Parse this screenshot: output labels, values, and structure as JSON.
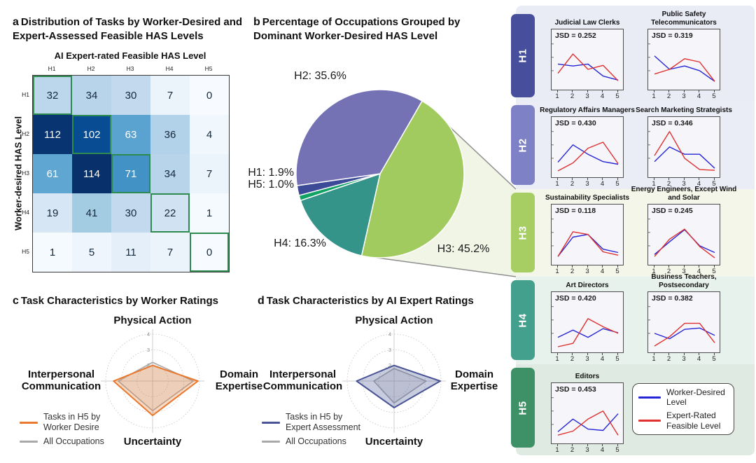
{
  "panels": {
    "a": {
      "letter": "a",
      "title": "Distribution of Tasks by Worker-Desired and Expert-Assessed Feasible HAS Levels"
    },
    "b": {
      "letter": "b",
      "title": "Percentage of Occupations Grouped by Dominant Worker-Desired HAS Level"
    },
    "c": {
      "letter": "c",
      "title": "Task Characteristics by Worker Ratings"
    },
    "d": {
      "letter": "d",
      "title": "Task Characteristics by AI Expert Ratings"
    }
  },
  "chart_data": [
    {
      "id": "confusion_heatmap",
      "type": "heatmap",
      "xlabel": "AI Expert-rated Feasible HAS Level",
      "ylabel": "Worker-desired HAS Level",
      "x_ticks": [
        "H1",
        "H2",
        "H3",
        "H4",
        "H5"
      ],
      "y_ticks": [
        "H1",
        "H2",
        "H3",
        "H4",
        "H5"
      ],
      "values": [
        [
          32,
          34,
          30,
          7,
          0
        ],
        [
          112,
          102,
          63,
          36,
          4
        ],
        [
          61,
          114,
          71,
          34,
          7
        ],
        [
          19,
          41,
          30,
          22,
          1
        ],
        [
          1,
          5,
          11,
          7,
          0
        ]
      ],
      "vmin": 0,
      "vmax": 114,
      "colormap": "Blues",
      "diagonal_highlight_color": "#2e8b4f"
    },
    {
      "id": "occupation_pie",
      "type": "pie",
      "unit": "%",
      "start_angle_clockwise_from_top_deg": 30,
      "slices": [
        {
          "label": "H3",
          "value": 45.2,
          "display": "H3: 45.2%",
          "color": "#a1cb5e"
        },
        {
          "label": "H4",
          "value": 16.3,
          "display": "H4: 16.3%",
          "color": "#359489"
        },
        {
          "label": "H5",
          "value": 1.0,
          "display": "H5: 1.0%",
          "color": "#10a364"
        },
        {
          "label": "H1",
          "value": 1.9,
          "display": "H1: 1.9%",
          "color": "#3c4a97"
        },
        {
          "label": "H2",
          "value": 35.6,
          "display": "H2: 35.6%",
          "color": "#7471b5"
        }
      ],
      "callout": {
        "from_slice": "H3",
        "fill": "#f1f5e6",
        "line_color": "#8f8f8f",
        "connects_to": "H3 occupation row"
      }
    },
    {
      "id": "radar_worker",
      "type": "radar",
      "axes": [
        "Physical Action",
        "Domain Expertise",
        "Uncertainty",
        "Interpersonal Communication"
      ],
      "r_min": 1,
      "r_max": 4,
      "r_ticks": [
        2,
        3,
        4
      ],
      "series": [
        {
          "name": "Tasks in H5 by Worker Desire",
          "color": "#e8792f",
          "fill_alpha": 0.28,
          "values": [
            2.0,
            3.9,
            3.2,
            3.5
          ]
        },
        {
          "name": "All Occupations",
          "color": "#a9a9a9",
          "fill_alpha": 0.18,
          "values": [
            2.2,
            3.6,
            2.9,
            3.2
          ]
        }
      ]
    },
    {
      "id": "radar_expert",
      "type": "radar",
      "axes": [
        "Physical Action",
        "Domain Expertise",
        "Uncertainty",
        "Interpersonal Communication"
      ],
      "r_min": 1,
      "r_max": 4,
      "r_ticks": [
        2,
        3,
        4
      ],
      "series": [
        {
          "name": "Tasks in H5 by Expert Assessment",
          "color": "#4a5596",
          "fill_alpha": 0.3,
          "values": [
            2.0,
            3.95,
            2.7,
            3.4
          ]
        },
        {
          "name": "All Occupations",
          "color": "#a9a9a9",
          "fill_alpha": 0.22,
          "values": [
            1.8,
            3.05,
            2.4,
            2.3
          ]
        }
      ]
    },
    {
      "id": "occupation_profiles",
      "type": "line",
      "x": [
        1,
        2,
        3,
        4,
        5
      ],
      "ylim": [
        0,
        0.65
      ],
      "legend": [
        {
          "name": "Worker-Desired Level",
          "color": "#2525d8"
        },
        {
          "name": "Expert-Rated Feasible Level",
          "color": "#e03030"
        }
      ],
      "groups": [
        {
          "level": "H1",
          "tab_color": "#474f9c",
          "row_bg": "#e9ebf5",
          "charts": [
            {
              "title": "Judicial Law Clerks",
              "jsd_label": "JSD = 0.252",
              "jsd": 0.252,
              "worker_desired": [
                0.3,
                0.27,
                0.3,
                0.12,
                0.06
              ],
              "expert_rated": [
                0.16,
                0.45,
                0.22,
                0.28,
                0.05
              ]
            },
            {
              "title": "Public Safety Telecommunicators",
              "jsd_label": "JSD = 0.319",
              "jsd": 0.319,
              "worker_desired": [
                0.42,
                0.22,
                0.27,
                0.2,
                0.04
              ],
              "expert_rated": [
                0.15,
                0.22,
                0.38,
                0.33,
                0.04
              ]
            }
          ]
        },
        {
          "level": "H2",
          "tab_color": "#7e81c5",
          "row_bg": "#eaecf6",
          "charts": [
            {
              "title": "Regulatory Affairs Managers",
              "jsd_label": "JSD = 0.430",
              "jsd": 0.43,
              "worker_desired": [
                0.14,
                0.4,
                0.26,
                0.15,
                0.11
              ],
              "expert_rated": [
                0.01,
                0.13,
                0.35,
                0.44,
                0.12
              ]
            },
            {
              "title": "Search Marketing Strategists",
              "jsd_label": "JSD = 0.346",
              "jsd": 0.346,
              "worker_desired": [
                0.15,
                0.37,
                0.26,
                0.26,
                0.05
              ],
              "expert_rated": [
                0.24,
                0.6,
                0.2,
                0.03,
                0.02
              ]
            }
          ]
        },
        {
          "level": "H3",
          "tab_color": "#a6ce62",
          "row_bg": "#f3f6e8",
          "charts": [
            {
              "title": "Sustainability Specialists",
              "jsd_label": "JSD = 0.118",
              "jsd": 0.118,
              "worker_desired": [
                0.04,
                0.33,
                0.37,
                0.15,
                0.1
              ],
              "expert_rated": [
                0.04,
                0.41,
                0.37,
                0.11,
                0.06
              ]
            },
            {
              "title": "Energy Engineers, Except Wind and Solar",
              "jsd_label": "JSD = 0.245",
              "jsd": 0.245,
              "worker_desired": [
                0.07,
                0.26,
                0.44,
                0.2,
                0.1
              ],
              "expert_rated": [
                0.04,
                0.3,
                0.45,
                0.19,
                0.02
              ]
            }
          ]
        },
        {
          "level": "H4",
          "tab_color": "#42a08c",
          "row_bg": "#e8f2ed",
          "charts": [
            {
              "title": "Art Directors",
              "jsd_label": "JSD = 0.420",
              "jsd": 0.42,
              "worker_desired": [
                0.14,
                0.25,
                0.14,
                0.27,
                0.21
              ],
              "expert_rated": [
                0.0,
                0.05,
                0.42,
                0.3,
                0.2
              ]
            },
            {
              "title": "Business Teachers, Postsecondary",
              "jsd_label": "JSD = 0.382",
              "jsd": 0.382,
              "worker_desired": [
                0.2,
                0.12,
                0.26,
                0.28,
                0.17
              ],
              "expert_rated": [
                0.01,
                0.15,
                0.35,
                0.35,
                0.06
              ]
            }
          ]
        },
        {
          "level": "H5",
          "tab_color": "#3e9166",
          "row_bg": "#dfeae2",
          "charts": [
            {
              "title": "Editors",
              "jsd_label": "JSD = 0.453",
              "jsd": 0.453,
              "worker_desired": [
                0.09,
                0.28,
                0.13,
                0.11,
                0.36
              ],
              "expert_rated": [
                0.04,
                0.1,
                0.28,
                0.4,
                0.04
              ]
            }
          ]
        }
      ]
    }
  ]
}
